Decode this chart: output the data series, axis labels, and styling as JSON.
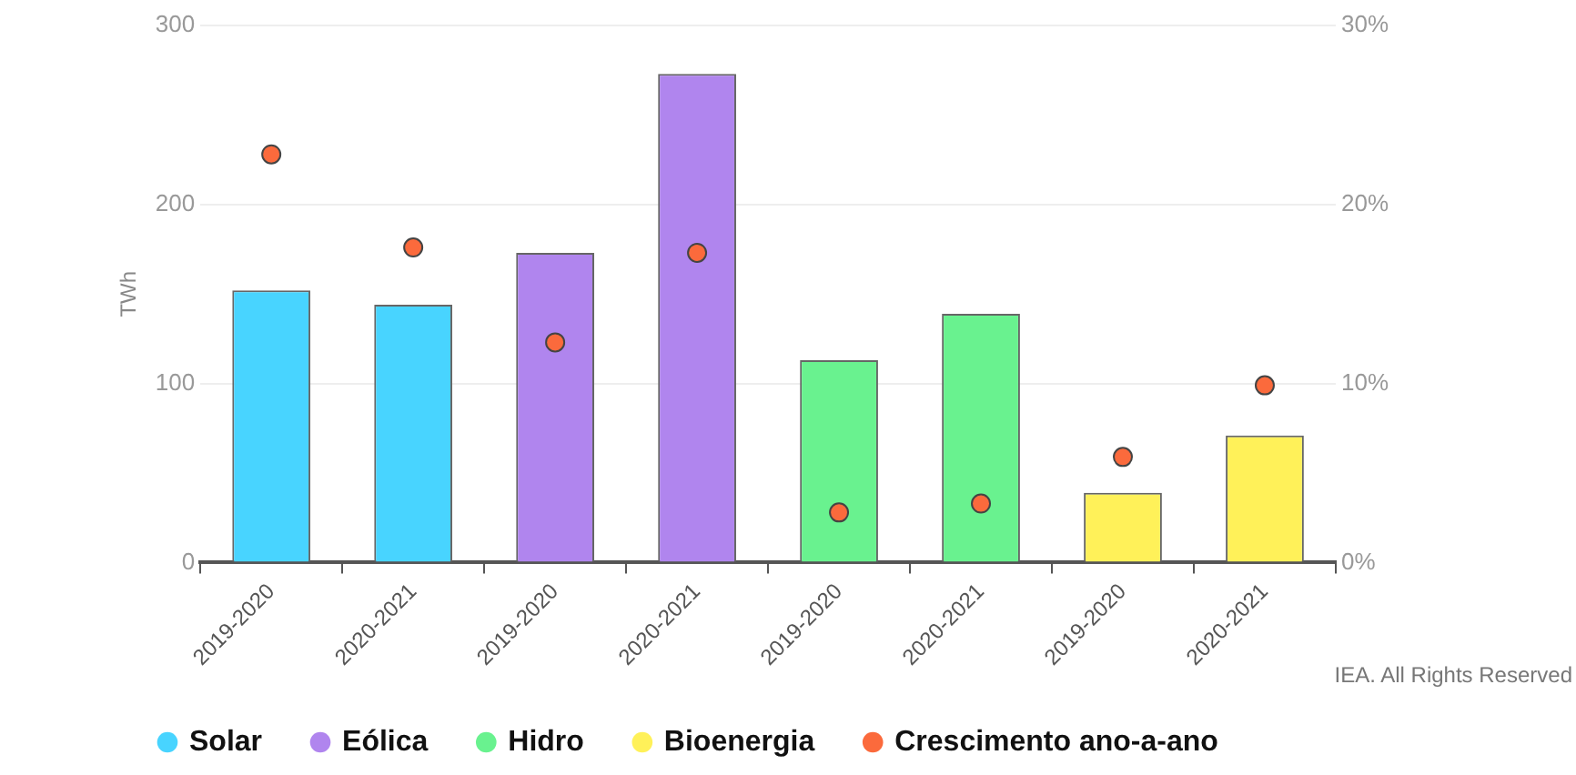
{
  "chart_data": {
    "type": "bar",
    "ylabel": "TWh",
    "categories": [
      "2019-2020",
      "2020-2021",
      "2019-2020",
      "2020-2021",
      "2019-2020",
      "2020-2021",
      "2019-2020",
      "2020-2021"
    ],
    "series": [
      {
        "name": "Solar",
        "color": "#48d4ff",
        "values": [
          152,
          144,
          null,
          null,
          null,
          null,
          null,
          null
        ]
      },
      {
        "name": "Eólica",
        "color": "#b085ee",
        "values": [
          null,
          null,
          173,
          273,
          null,
          null,
          null,
          null
        ]
      },
      {
        "name": "Hidro",
        "color": "#69f28f",
        "values": [
          null,
          null,
          null,
          null,
          113,
          139,
          null,
          null
        ]
      },
      {
        "name": "Bioenergia",
        "color": "#fff159",
        "values": [
          null,
          null,
          null,
          null,
          null,
          null,
          39,
          71
        ]
      },
      {
        "name": "Crescimento ano-a-ano",
        "type": "scatter",
        "axis": "y2",
        "color": "#fb6a3c",
        "values": [
          22.8,
          17.6,
          12.3,
          17.3,
          2.8,
          3.3,
          5.9,
          9.9
        ]
      }
    ],
    "ylim": [
      0,
      300
    ],
    "yticks": [
      0,
      100,
      200,
      300
    ],
    "y2lim": [
      0,
      30
    ],
    "y2ticks": [
      {
        "value": 0,
        "label": "0%"
      },
      {
        "value": 10,
        "label": "10%"
      },
      {
        "value": 20,
        "label": "20%"
      },
      {
        "value": 30,
        "label": "30%"
      }
    ],
    "stacked": true,
    "grid": "y",
    "legend": "bottom",
    "marker": "circle",
    "annotations": [
      "IEA. All Rights Reserved"
    ]
  }
}
